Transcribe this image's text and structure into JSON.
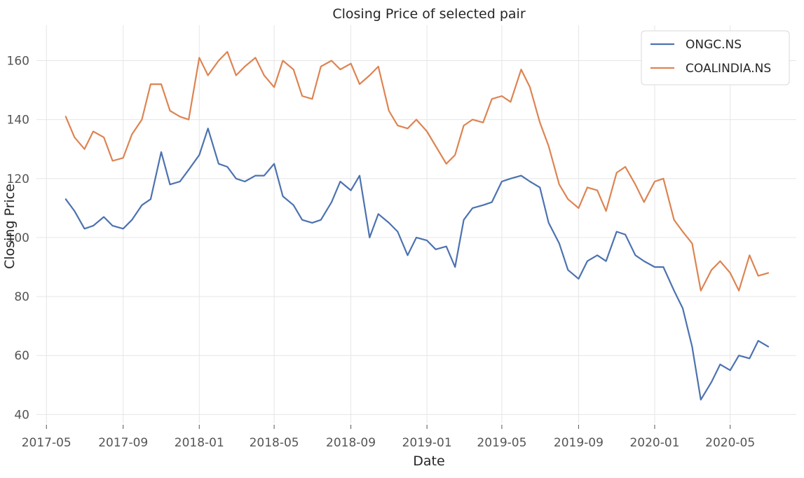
{
  "chart_data": {
    "type": "line",
    "title": "Closing Price of selected pair",
    "xlabel": "Date",
    "ylabel": "Closing Price",
    "x_ticks": [
      "2017-05",
      "2017-09",
      "2018-01",
      "2018-05",
      "2018-09",
      "2019-01",
      "2019-05",
      "2019-09",
      "2020-01",
      "2020-05"
    ],
    "y_ticks": [
      40,
      60,
      80,
      100,
      120,
      140,
      160
    ],
    "xlim": [
      "2017-04-15",
      "2020-08-15"
    ],
    "ylim": [
      37,
      172
    ],
    "grid": true,
    "legend_position": "top-right",
    "x": [
      "2017-06-01",
      "2017-06-15",
      "2017-07-01",
      "2017-07-15",
      "2017-08-01",
      "2017-08-15",
      "2017-09-01",
      "2017-09-15",
      "2017-10-01",
      "2017-10-15",
      "2017-11-01",
      "2017-11-15",
      "2017-12-01",
      "2017-12-15",
      "2018-01-01",
      "2018-01-15",
      "2018-02-01",
      "2018-02-15",
      "2018-03-01",
      "2018-03-15",
      "2018-04-01",
      "2018-04-15",
      "2018-05-01",
      "2018-05-15",
      "2018-06-01",
      "2018-06-15",
      "2018-07-01",
      "2018-07-15",
      "2018-08-01",
      "2018-08-15",
      "2018-09-01",
      "2018-09-15",
      "2018-10-01",
      "2018-10-15",
      "2018-11-01",
      "2018-11-15",
      "2018-12-01",
      "2018-12-15",
      "2019-01-01",
      "2019-01-15",
      "2019-02-01",
      "2019-02-15",
      "2019-03-01",
      "2019-03-15",
      "2019-04-01",
      "2019-04-15",
      "2019-05-01",
      "2019-05-15",
      "2019-06-01",
      "2019-06-15",
      "2019-07-01",
      "2019-07-15",
      "2019-08-01",
      "2019-08-15",
      "2019-09-01",
      "2019-09-15",
      "2019-10-01",
      "2019-10-15",
      "2019-11-01",
      "2019-11-15",
      "2019-12-01",
      "2019-12-15",
      "2020-01-01",
      "2020-01-15",
      "2020-02-01",
      "2020-02-15",
      "2020-03-01",
      "2020-03-15",
      "2020-04-01",
      "2020-04-15",
      "2020-05-01",
      "2020-05-15",
      "2020-06-01",
      "2020-06-15",
      "2020-07-01"
    ],
    "series": [
      {
        "name": "ONGC.NS",
        "color": "#4c72b0",
        "values": [
          113,
          109,
          103,
          104,
          107,
          104,
          103,
          106,
          111,
          113,
          129,
          118,
          119,
          123,
          128,
          137,
          125,
          124,
          120,
          119,
          121,
          121,
          125,
          114,
          111,
          106,
          105,
          106,
          112,
          119,
          116,
          121,
          100,
          108,
          105,
          102,
          94,
          100,
          99,
          96,
          97,
          90,
          106,
          110,
          111,
          112,
          119,
          120,
          121,
          119,
          117,
          105,
          98,
          89,
          86,
          92,
          94,
          92,
          102,
          101,
          94,
          92,
          90,
          90,
          82,
          76,
          63,
          45,
          51,
          57,
          55,
          60,
          59,
          65,
          63
        ]
      },
      {
        "name": "COALINDIA.NS",
        "color": "#dd8452",
        "values": [
          141,
          134,
          130,
          136,
          134,
          126,
          127,
          135,
          140,
          152,
          152,
          143,
          141,
          140,
          161,
          155,
          160,
          163,
          155,
          158,
          161,
          155,
          151,
          160,
          157,
          148,
          147,
          158,
          160,
          157,
          159,
          152,
          155,
          158,
          143,
          138,
          137,
          140,
          136,
          131,
          125,
          128,
          138,
          140,
          139,
          147,
          148,
          146,
          157,
          151,
          139,
          131,
          118,
          113,
          110,
          117,
          116,
          109,
          122,
          124,
          118,
          112,
          119,
          120,
          106,
          102,
          98,
          82,
          89,
          92,
          88,
          82,
          94,
          87,
          88
        ]
      }
    ]
  }
}
